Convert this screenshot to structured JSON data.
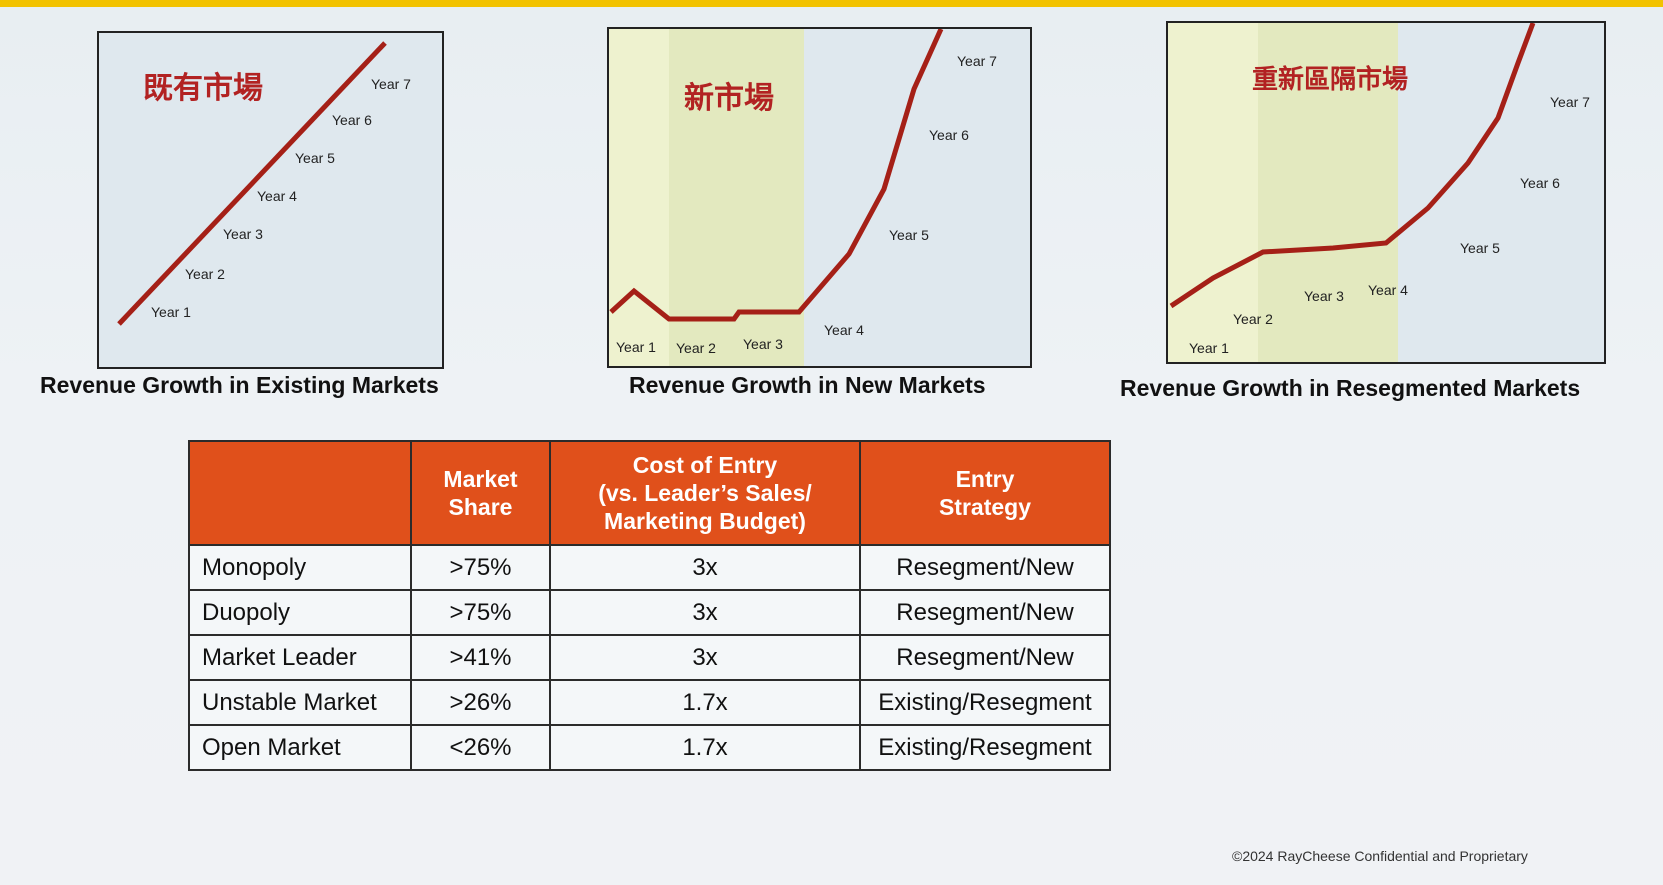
{
  "colors": {
    "accent": "#e0501b",
    "line": "#a52017",
    "title_cjk": "#b22222",
    "band": "#eef2cf",
    "topbar": "#f2c200"
  },
  "chart_data": [
    {
      "type": "line",
      "title": "Revenue Growth in Existing Markets",
      "label": "既有市場",
      "points": [
        "Year 1",
        "Year 2",
        "Year 3",
        "Year 4",
        "Year 5",
        "Year 6",
        "Year 7"
      ],
      "trend": "linear growth"
    },
    {
      "type": "line",
      "title": "Revenue Growth in New Markets",
      "label": "新市場",
      "points": [
        "Year 1",
        "Year 2",
        "Year 3",
        "Year 4",
        "Year 5",
        "Year 6",
        "Year 7"
      ],
      "trend": "flat for years 1-3, then exponential growth"
    },
    {
      "type": "line",
      "title": "Revenue Growth in Resegmented Markets",
      "label": "重新區隔市場",
      "points": [
        "Year 1",
        "Year 2",
        "Year 3",
        "Year 4",
        "Year 5",
        "Year 6",
        "Year 7"
      ],
      "trend": "modest rise, plateau through year 4, then steep growth"
    }
  ],
  "table": {
    "headers": [
      "",
      "Market Share",
      "Cost of Entry (vs. Leader’s Sales/ Marketing Budget)",
      "Entry Strategy"
    ],
    "header_lines": [
      [
        ""
      ],
      [
        "Market",
        "Share"
      ],
      [
        "Cost of Entry",
        "(vs. Leader’s Sales/",
        "Marketing Budget)"
      ],
      [
        "Entry",
        "Strategy"
      ]
    ],
    "rows": [
      [
        "Monopoly",
        ">75%",
        "3x",
        "Resegment/New"
      ],
      [
        "Duopoly",
        ">75%",
        "3x",
        "Resegment/New"
      ],
      [
        "Market Leader",
        ">41%",
        "3x",
        "Resegment/New"
      ],
      [
        "Unstable Market",
        ">26%",
        "1.7x",
        "Existing/Resegment"
      ],
      [
        "Open Market",
        "<26%",
        "1.7x",
        "Existing/Resegment"
      ]
    ]
  },
  "footer": "©2024 RayCheese Confidential and Proprietary"
}
